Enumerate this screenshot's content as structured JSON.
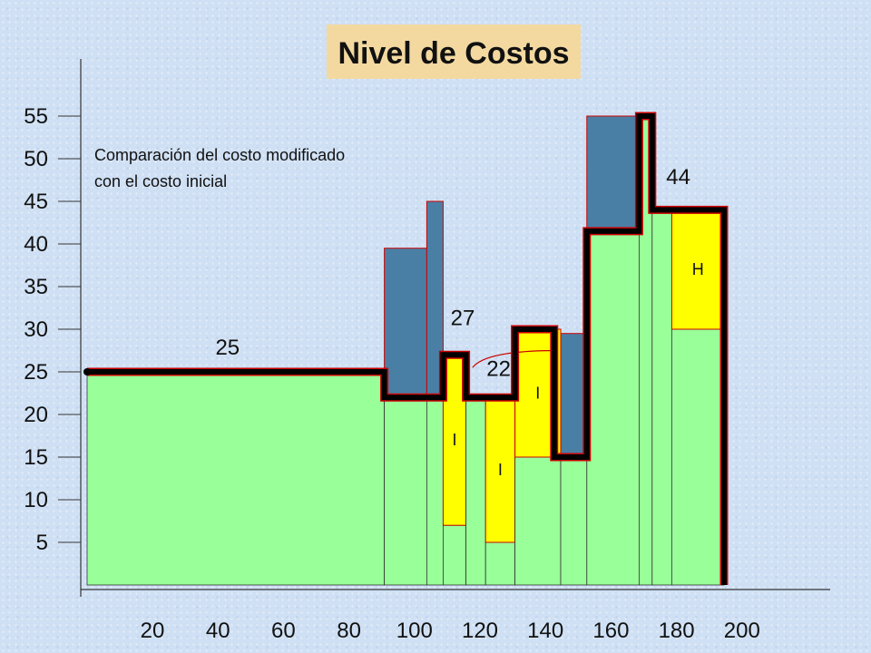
{
  "chart_data": {
    "type": "bar",
    "title": "Nivel de Costos",
    "subtitle_lines": [
      "Comparación del costo modificado",
      "con el costo inicial"
    ],
    "x_ticks": [
      "20",
      "40",
      "60",
      "80",
      "100",
      "120",
      "140",
      "160",
      "180",
      "200"
    ],
    "y_ticks": [
      "5",
      "10",
      "15",
      "20",
      "25",
      "30",
      "35",
      "40",
      "45",
      "50",
      "55"
    ],
    "xlim": [
      0,
      200
    ],
    "ylim": [
      0,
      55
    ],
    "colors": {
      "base": "#99ff99",
      "reduction": "#4a7fa5",
      "increase": "#ffff00",
      "line": "#000000",
      "red_line": "#cc0000"
    },
    "bars": [
      {
        "x0": 0,
        "x1": 91,
        "base": 25
      },
      {
        "x0": 91,
        "x1": 104,
        "base": 22,
        "from": 22,
        "to": 39.5,
        "kind": "reduction"
      },
      {
        "x0": 104,
        "x1": 109,
        "base": 22,
        "from": 22,
        "to": 45,
        "kind": "reduction"
      },
      {
        "x0": 109,
        "x1": 116,
        "base": 7,
        "from": 7,
        "to": 27,
        "kind": "increase",
        "label": "I"
      },
      {
        "x0": 116,
        "x1": 122,
        "base": 22
      },
      {
        "x0": 122,
        "x1": 131,
        "base": 5,
        "from": 5,
        "to": 22,
        "kind": "increase",
        "label": "I"
      },
      {
        "x0": 131,
        "x1": 145,
        "base": 15,
        "from": 15,
        "to": 30,
        "kind": "increase",
        "label": "I"
      },
      {
        "x0": 145,
        "x1": 153,
        "base": 15,
        "from": 15,
        "to": 29.5,
        "kind": "reduction"
      },
      {
        "x0": 153,
        "x1": 169,
        "base": 41.5,
        "from": 41.5,
        "to": 55,
        "kind": "reduction"
      },
      {
        "x0": 169,
        "x1": 173,
        "base": 55
      },
      {
        "x0": 173,
        "x1": 179,
        "base": 44
      },
      {
        "x0": 179,
        "x1": 195,
        "base": 30,
        "from": 30,
        "to": 44,
        "kind": "increase",
        "label": "H"
      }
    ],
    "modified_cost_line": [
      [
        0,
        25
      ],
      [
        91,
        25
      ],
      [
        91,
        22
      ],
      [
        109,
        22
      ],
      [
        109,
        27
      ],
      [
        116,
        27
      ],
      [
        116,
        22
      ],
      [
        131,
        22
      ],
      [
        131,
        30
      ],
      [
        143,
        30
      ],
      [
        143,
        15
      ],
      [
        153,
        15
      ],
      [
        153,
        41.5
      ],
      [
        169,
        41.5
      ],
      [
        169,
        55
      ],
      [
        173,
        55
      ],
      [
        173,
        44
      ],
      [
        195,
        44
      ],
      [
        195,
        0
      ]
    ],
    "annotations": [
      {
        "text": "25",
        "x": 43,
        "y": 27
      },
      {
        "text": "27",
        "x": 115,
        "y": 30.5
      },
      {
        "text": "22",
        "x": 126,
        "y": 24.5
      },
      {
        "text": "44",
        "x": 181,
        "y": 47
      }
    ]
  }
}
